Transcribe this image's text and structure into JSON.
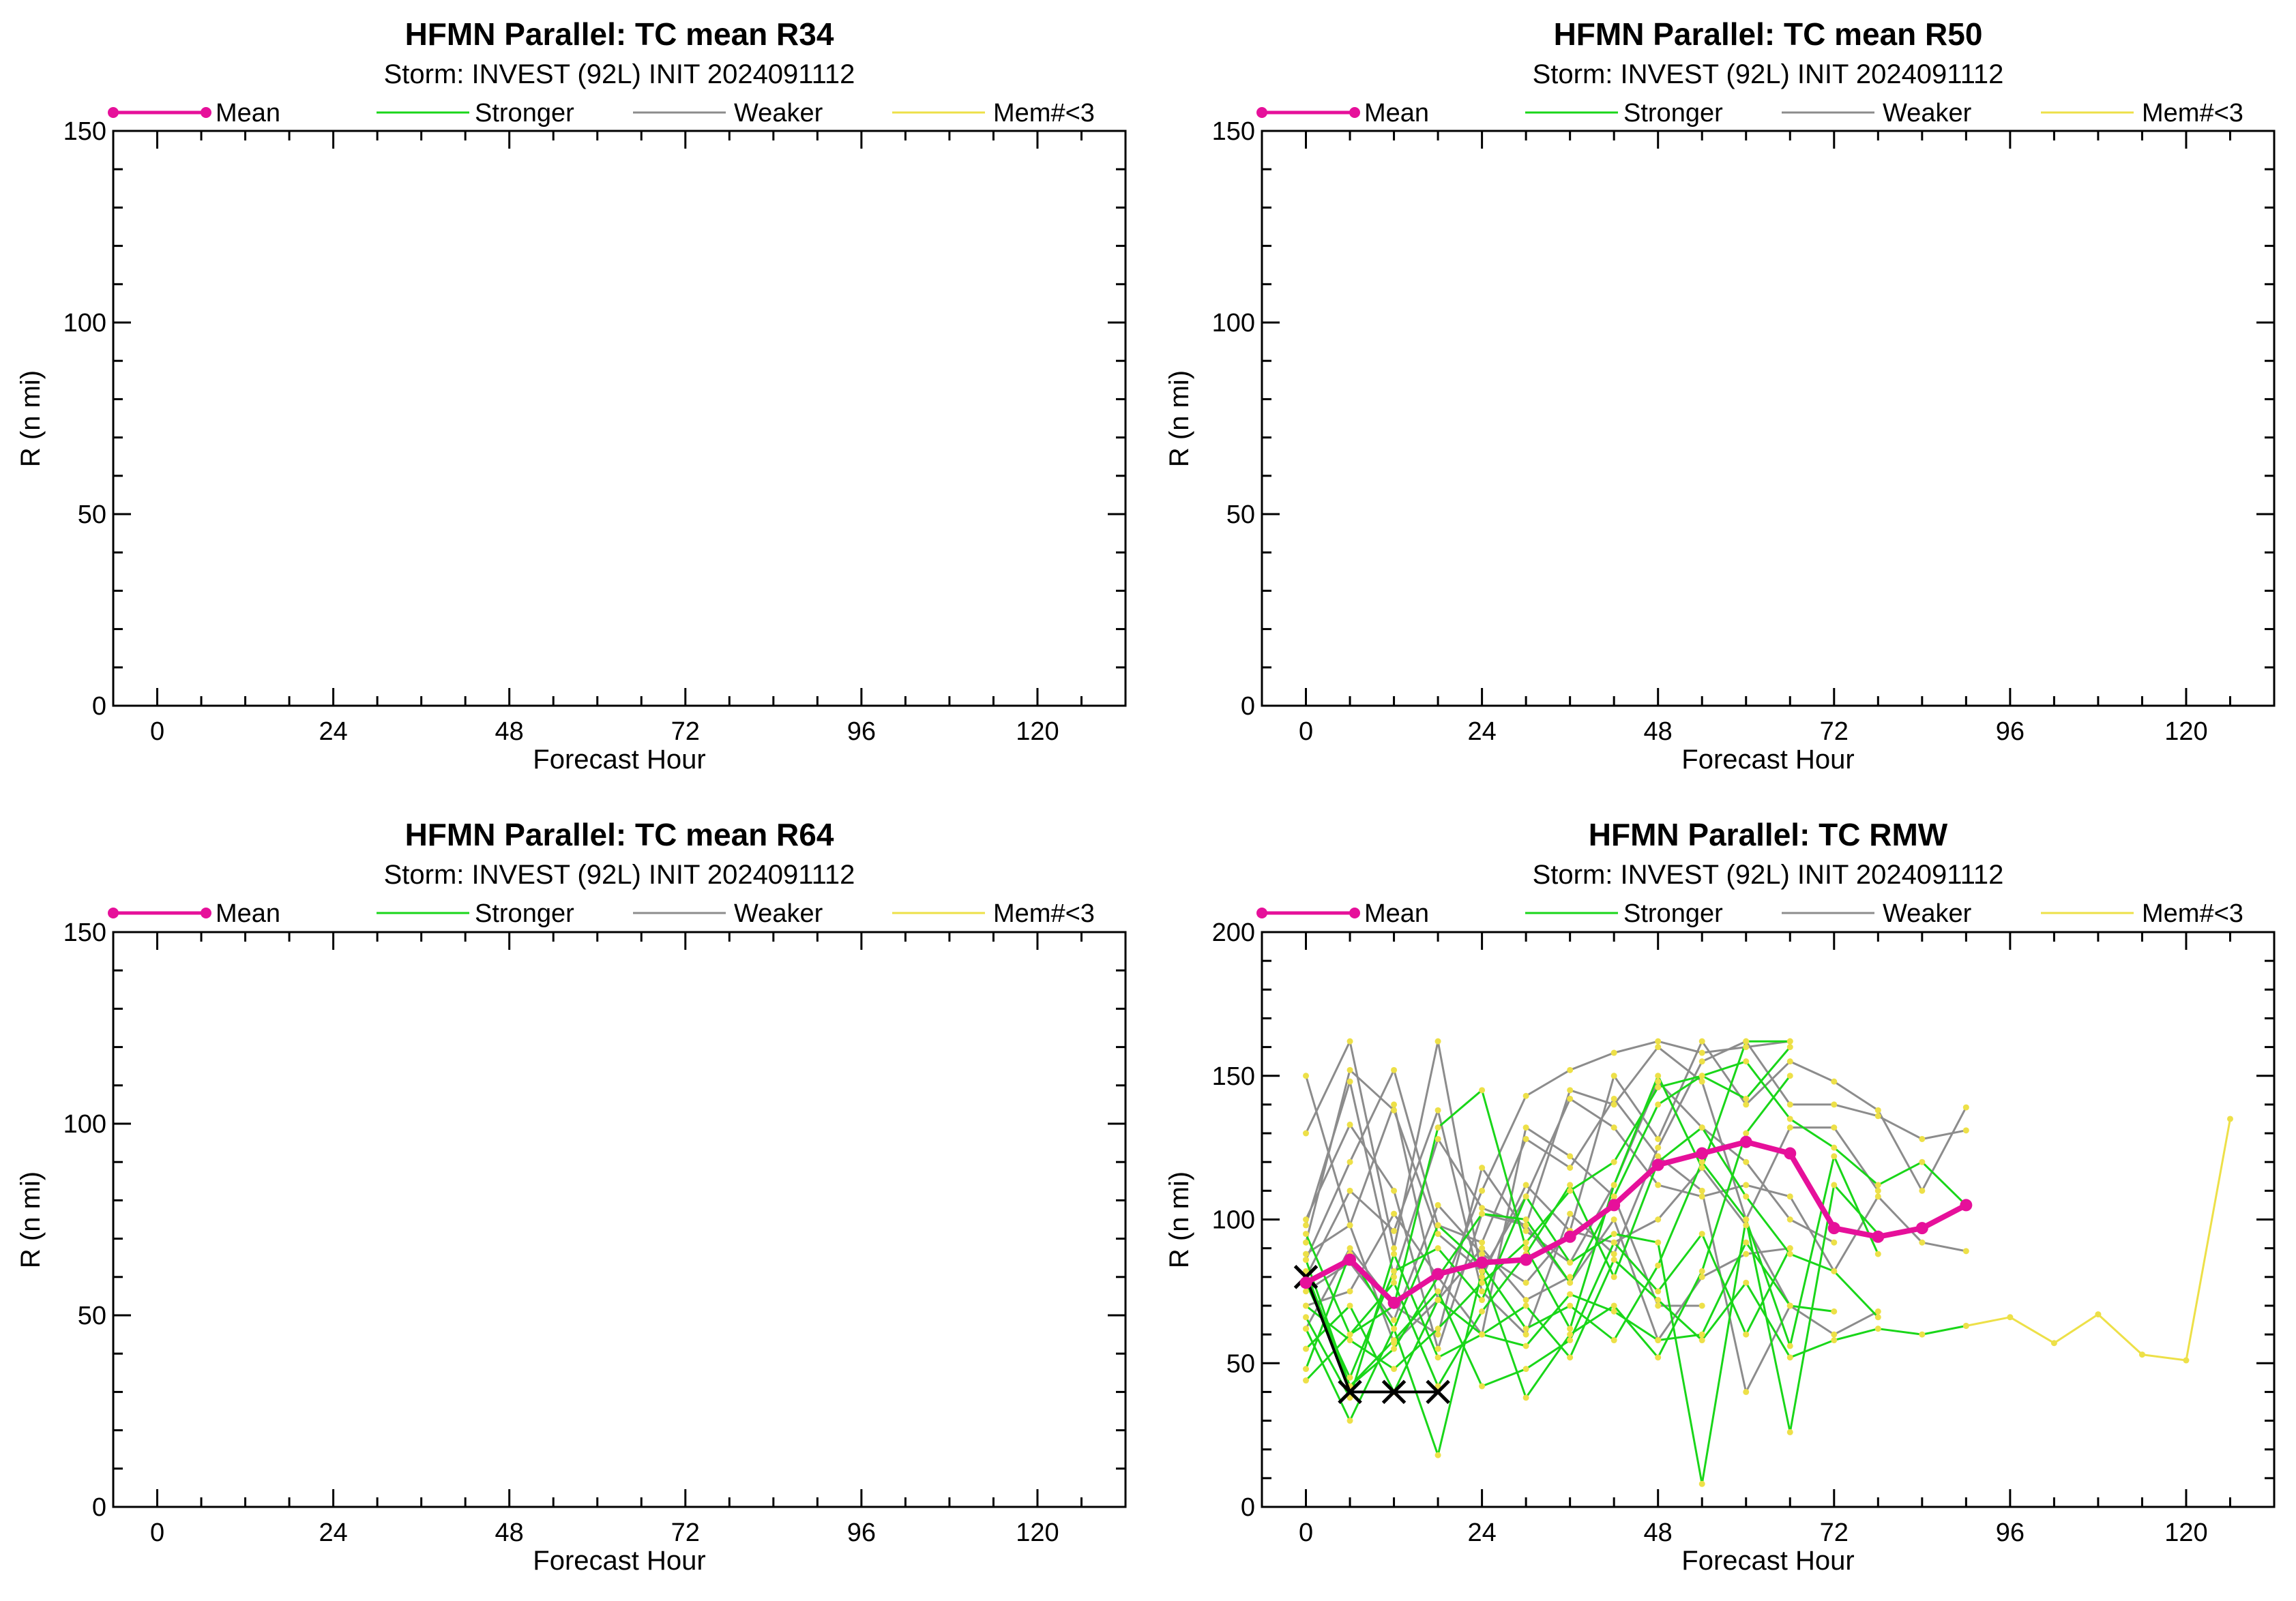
{
  "colors": {
    "mean": "#e6109a",
    "stronger": "#19d619",
    "weaker": "#8c8c8c",
    "few_members": "#ede048",
    "best_track": "#000000"
  },
  "legend": {
    "mean": "Mean",
    "stronger": "Stronger",
    "weaker": "Weaker",
    "few_members": "Mem#<3"
  },
  "chart_data": [
    {
      "type": "line",
      "title": "HFMN Parallel: TC mean R34",
      "subtitle": "Storm: INVEST (92L) INIT 2024091112",
      "xlabel": "Forecast Hour",
      "ylabel": "R (n mi)",
      "xlim": [
        -6,
        132
      ],
      "ylim": [
        0,
        150
      ],
      "xticks": [
        0,
        24,
        48,
        72,
        96,
        120
      ],
      "yticks": [
        0,
        50,
        100,
        150
      ],
      "grid": false,
      "legend_position": "top",
      "series": []
    },
    {
      "type": "line",
      "title": "HFMN Parallel: TC mean R50",
      "subtitle": "Storm: INVEST (92L) INIT 2024091112",
      "xlabel": "Forecast Hour",
      "ylabel": "R (n mi)",
      "xlim": [
        -6,
        132
      ],
      "ylim": [
        0,
        150
      ],
      "xticks": [
        0,
        24,
        48,
        72,
        96,
        120
      ],
      "yticks": [
        0,
        50,
        100,
        150
      ],
      "grid": false,
      "legend_position": "top",
      "series": []
    },
    {
      "type": "line",
      "title": "HFMN Parallel: TC mean R64",
      "subtitle": "Storm: INVEST (92L) INIT 2024091112",
      "xlabel": "Forecast Hour",
      "ylabel": "R (n mi)",
      "xlim": [
        -6,
        132
      ],
      "ylim": [
        0,
        150
      ],
      "xticks": [
        0,
        24,
        48,
        72,
        96,
        120
      ],
      "yticks": [
        0,
        50,
        100,
        150
      ],
      "grid": false,
      "legend_position": "top",
      "series": []
    },
    {
      "type": "line",
      "title": "HFMN Parallel: TC RMW",
      "subtitle": "Storm: INVEST (92L) INIT 2024091112",
      "xlabel": "Forecast Hour",
      "ylabel": "R (n mi)",
      "xlim": [
        -6,
        132
      ],
      "ylim": [
        0,
        200
      ],
      "xticks": [
        0,
        24,
        48,
        72,
        96,
        120
      ],
      "yticks": [
        0,
        50,
        100,
        150,
        200
      ],
      "grid": false,
      "legend_position": "top",
      "members": [
        {
          "kind": "weaker",
          "x": [
            0,
            6,
            12,
            18,
            24,
            30,
            36,
            42,
            48,
            54,
            60,
            66
          ],
          "y": [
            150,
            98,
            140,
            72,
            110,
            143,
            152,
            158,
            162,
            158,
            160,
            162
          ]
        },
        {
          "kind": "weaker",
          "x": [
            0,
            6,
            12,
            18,
            24,
            30,
            36,
            42,
            48,
            54,
            60,
            66,
            72,
            78,
            84,
            90
          ],
          "y": [
            130,
            162,
            90,
            162,
            80,
            112,
            96,
            150,
            128,
            162,
            140,
            155,
            148,
            138,
            110,
            139
          ]
        },
        {
          "kind": "weaker",
          "x": [
            0,
            6,
            12,
            18,
            24,
            30,
            36,
            42,
            48,
            54,
            60,
            66,
            72,
            78
          ],
          "y": [
            98,
            148,
            80,
            128,
            104,
            98,
            145,
            140,
            160,
            148,
            100,
            132,
            132,
            110
          ]
        },
        {
          "kind": "weaker",
          "x": [
            0,
            6,
            12,
            18,
            24,
            30,
            36,
            42,
            48,
            54,
            60,
            66
          ],
          "y": [
            86,
            120,
            152,
            98,
            92,
            128,
            118,
            142,
            122,
            110,
            40,
            70
          ]
        },
        {
          "kind": "weaker",
          "x": [
            0,
            6,
            12,
            18,
            24,
            30,
            36,
            42,
            48,
            54,
            60,
            66,
            72,
            78,
            84,
            90
          ],
          "y": [
            80,
            110,
            96,
            138,
            75,
            60,
            102,
            88,
            125,
            155,
            162,
            140,
            140,
            136,
            128,
            131
          ]
        },
        {
          "kind": "weaker",
          "x": [
            0,
            6,
            12,
            18,
            24,
            30,
            36,
            42,
            48,
            54,
            60,
            66,
            72
          ],
          "y": [
            62,
            90,
            70,
            60,
            118,
            96,
            85,
            112,
            148,
            132,
            120,
            100,
            92
          ]
        },
        {
          "kind": "weaker",
          "x": [
            0,
            6,
            12,
            18,
            24,
            30,
            36,
            42,
            48,
            54,
            60,
            66,
            72,
            78,
            84,
            90
          ],
          "y": [
            92,
            152,
            138,
            95,
            82,
            108,
            142,
            132,
            112,
            108,
            112,
            108,
            82,
            108,
            92,
            89
          ]
        },
        {
          "kind": "weaker",
          "x": [
            0,
            6,
            12,
            18,
            24,
            30,
            36,
            42,
            48,
            54
          ],
          "y": [
            70,
            75,
            102,
            80,
            60,
            132,
            122,
            108,
            70,
            70
          ]
        },
        {
          "kind": "weaker",
          "x": [
            0,
            6,
            12,
            18,
            24,
            30,
            36,
            42,
            48,
            54,
            60,
            66,
            72,
            78
          ],
          "y": [
            75,
            85,
            65,
            105,
            88,
            78,
            96,
            92,
            100,
            118,
            98,
            70,
            60,
            68
          ]
        },
        {
          "kind": "weaker",
          "x": [
            0,
            6,
            12,
            18,
            24,
            30,
            36,
            42,
            48,
            54,
            60,
            66
          ],
          "y": [
            100,
            133,
            110,
            55,
            102,
            98,
            78,
            100,
            58,
            80,
            88,
            90
          ]
        },
        {
          "kind": "weaker",
          "x": [
            0,
            6,
            12,
            18,
            24,
            30,
            36
          ],
          "y": [
            88,
            98,
            57,
            72,
            90,
            72,
            80
          ]
        },
        {
          "kind": "stronger",
          "x": [
            0,
            6,
            12,
            18,
            24,
            30,
            36,
            42,
            48,
            54,
            60,
            66
          ],
          "y": [
            95,
            60,
            70,
            132,
            145,
            90,
            62,
            112,
            150,
            118,
            162,
            162
          ]
        },
        {
          "kind": "stronger",
          "x": [
            0,
            6,
            12,
            18,
            24,
            30,
            36,
            42,
            48,
            54,
            60,
            66,
            72,
            78,
            84,
            90
          ],
          "y": [
            82,
            42,
            55,
            80,
            102,
            100,
            78,
            108,
            140,
            150,
            155,
            135,
            125,
            112,
            120,
            105
          ]
        },
        {
          "kind": "stronger",
          "x": [
            0,
            6,
            12,
            18,
            24,
            30,
            36,
            42,
            48,
            54,
            60,
            66
          ],
          "y": [
            70,
            58,
            48,
            62,
            78,
            92,
            110,
            120,
            146,
            150,
            142,
            160
          ]
        },
        {
          "kind": "stronger",
          "x": [
            0,
            6,
            12,
            18,
            24,
            30,
            36,
            42,
            48,
            54,
            60,
            66
          ],
          "y": [
            62,
            30,
            62,
            18,
            82,
            38,
            60,
            70,
            52,
            82,
            130,
            150
          ]
        },
        {
          "kind": "stronger",
          "x": [
            0,
            6,
            12,
            18,
            24,
            30,
            36,
            42,
            48,
            54,
            60,
            66,
            72,
            78
          ],
          "y": [
            78,
            45,
            82,
            90,
            72,
            108,
            85,
            95,
            92,
            8,
            100,
            56,
            122,
            88
          ]
        },
        {
          "kind": "stronger",
          "x": [
            0,
            6,
            12,
            18,
            24,
            30,
            36,
            42,
            48,
            54,
            60,
            66,
            72,
            78,
            84,
            90
          ],
          "y": [
            55,
            70,
            40,
            72,
            60,
            70,
            52,
            86,
            72,
            58,
            78,
            52,
            58,
            62,
            60,
            63
          ]
        },
        {
          "kind": "stronger",
          "x": [
            0,
            6,
            12,
            18,
            24,
            30,
            36,
            42,
            48,
            54,
            60,
            66,
            72,
            78
          ],
          "y": [
            48,
            88,
            62,
            98,
            84,
            62,
            70,
            58,
            84,
            120,
            100,
            26,
            112,
            95
          ]
        },
        {
          "kind": "stronger",
          "x": [
            0,
            6,
            12,
            18,
            24,
            30,
            36,
            42,
            48,
            54,
            60,
            66,
            72,
            78
          ],
          "y": [
            44,
            60,
            78,
            42,
            68,
            88,
            112,
            80,
            120,
            132,
            108,
            88,
            82,
            66
          ]
        },
        {
          "kind": "stronger",
          "x": [
            0,
            6,
            12,
            18,
            24,
            30,
            36,
            42,
            48,
            54,
            60,
            66,
            72
          ],
          "y": [
            66,
            38,
            88,
            52,
            60,
            56,
            74,
            68,
            58,
            60,
            92,
            70,
            68
          ]
        },
        {
          "kind": "stronger",
          "x": [
            0,
            6,
            12,
            18,
            24,
            30,
            36,
            42,
            48,
            54,
            60,
            66
          ],
          "y": [
            86,
            42,
            58,
            75,
            42,
            48,
            58,
            92,
            75,
            95,
            60,
            90
          ]
        },
        {
          "kind": "few_members",
          "x": [
            90,
            96,
            102,
            108,
            114,
            120,
            126
          ],
          "y": [
            63,
            66,
            57,
            67,
            53,
            51,
            135
          ]
        }
      ],
      "mean": {
        "x": [
          0,
          6,
          12,
          18,
          24,
          30,
          36,
          42,
          48,
          54,
          60,
          66,
          72,
          78,
          84,
          90
        ],
        "y": [
          78,
          86,
          71,
          81,
          85,
          86,
          94,
          105,
          119,
          123,
          127,
          123,
          97,
          94,
          97,
          105
        ]
      },
      "best_track": {
        "x": [
          0,
          6,
          12,
          18
        ],
        "y": [
          80,
          40,
          40,
          40
        ]
      }
    }
  ]
}
